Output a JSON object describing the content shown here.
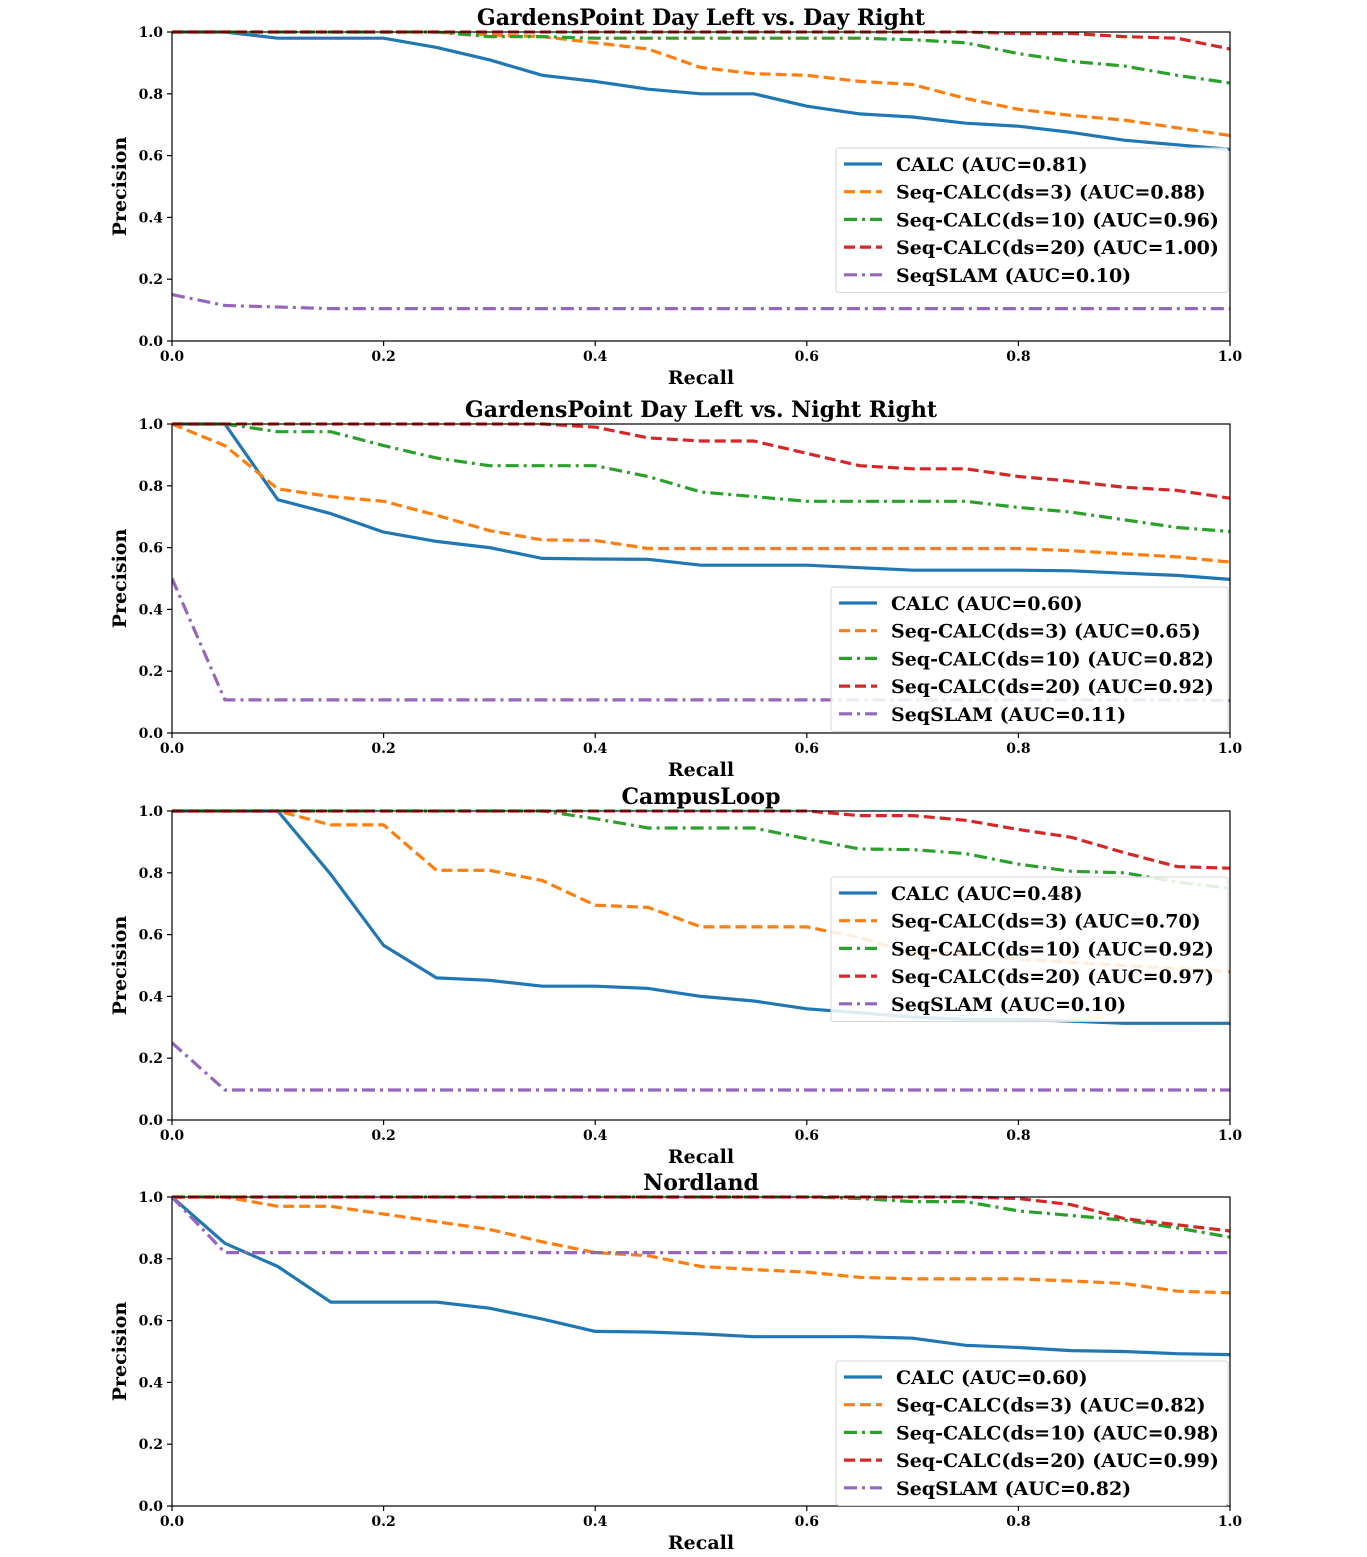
{
  "chart_data": [
    {
      "type": "line",
      "title": "GardensPoint Day Left vs. Day Right",
      "xlabel": "Recall",
      "ylabel": "Precision",
      "xlim": [
        0,
        1
      ],
      "ylim": [
        0,
        1
      ],
      "xticks": [
        "0.0",
        "0.2",
        "0.4",
        "0.6",
        "0.8",
        "1.0"
      ],
      "yticks": [
        "0.0",
        "0.2",
        "0.4",
        "0.6",
        "0.8",
        "1.0"
      ],
      "legend_position": "center-right",
      "x": [
        0.0,
        0.05,
        0.1,
        0.15,
        0.2,
        0.25,
        0.3,
        0.35,
        0.4,
        0.45,
        0.5,
        0.55,
        0.6,
        0.65,
        0.7,
        0.75,
        0.8,
        0.85,
        0.9,
        0.95,
        1.0
      ],
      "series": [
        {
          "name": "CALC (AUC=0.81)",
          "color": "#1f77b4",
          "style": "solid",
          "values": [
            1.0,
            1.0,
            0.98,
            0.98,
            0.98,
            0.95,
            0.91,
            0.86,
            0.84,
            0.815,
            0.8,
            0.8,
            0.76,
            0.735,
            0.725,
            0.705,
            0.695,
            0.675,
            0.65,
            0.635,
            0.62
          ]
        },
        {
          "name": "Seq-CALC(ds=3) (AUC=0.88)",
          "color": "#ff7f0e",
          "style": "dashed",
          "values": [
            1.0,
            1.0,
            1.0,
            1.0,
            1.0,
            1.0,
            0.99,
            0.985,
            0.965,
            0.945,
            0.885,
            0.865,
            0.86,
            0.84,
            0.83,
            0.785,
            0.75,
            0.73,
            0.715,
            0.69,
            0.665
          ]
        },
        {
          "name": "Seq-CALC(ds=10) (AUC=0.96)",
          "color": "#2ca02c",
          "style": "dashdot",
          "values": [
            1.0,
            1.0,
            1.0,
            1.0,
            1.0,
            1.0,
            0.985,
            0.985,
            0.98,
            0.98,
            0.98,
            0.98,
            0.98,
            0.98,
            0.975,
            0.965,
            0.93,
            0.905,
            0.89,
            0.86,
            0.835
          ]
        },
        {
          "name": "Seq-CALC(ds=20) (AUC=1.00)",
          "color": "#d62728",
          "style": "dashed",
          "values": [
            1.0,
            1.0,
            1.0,
            1.0,
            1.0,
            1.0,
            1.0,
            1.0,
            1.0,
            1.0,
            1.0,
            1.0,
            1.0,
            1.0,
            1.0,
            1.0,
            0.995,
            0.995,
            0.985,
            0.98,
            0.945
          ]
        },
        {
          "name": "SeqSLAM (AUC=0.10)",
          "color": "#9467bd",
          "style": "dashdot",
          "values": [
            0.15,
            0.115,
            0.11,
            0.105,
            0.105,
            0.105,
            0.105,
            0.105,
            0.105,
            0.105,
            0.105,
            0.105,
            0.105,
            0.105,
            0.105,
            0.105,
            0.105,
            0.105,
            0.105,
            0.105,
            0.105
          ]
        }
      ]
    },
    {
      "type": "line",
      "title": "GardensPoint Day Left vs. Night Right",
      "xlabel": "Recall",
      "ylabel": "Precision",
      "xlim": [
        0,
        1
      ],
      "ylim": [
        0,
        1
      ],
      "xticks": [
        "0.0",
        "0.2",
        "0.4",
        "0.6",
        "0.8",
        "1.0"
      ],
      "yticks": [
        "0.0",
        "0.2",
        "0.4",
        "0.6",
        "0.8",
        "1.0"
      ],
      "legend_position": "lower-right",
      "x": [
        0.0,
        0.05,
        0.1,
        0.15,
        0.2,
        0.25,
        0.3,
        0.35,
        0.4,
        0.45,
        0.5,
        0.55,
        0.6,
        0.65,
        0.7,
        0.75,
        0.8,
        0.85,
        0.9,
        0.95,
        1.0
      ],
      "series": [
        {
          "name": "CALC (AUC=0.60)",
          "color": "#1f77b4",
          "style": "solid",
          "values": [
            1.0,
            1.0,
            0.755,
            0.71,
            0.65,
            0.62,
            0.6,
            0.565,
            0.563,
            0.562,
            0.543,
            0.543,
            0.543,
            0.535,
            0.527,
            0.527,
            0.527,
            0.525,
            0.517,
            0.51,
            0.497
          ]
        },
        {
          "name": "Seq-CALC(ds=3) (AUC=0.65)",
          "color": "#ff7f0e",
          "style": "dashed",
          "values": [
            1.0,
            0.93,
            0.79,
            0.765,
            0.75,
            0.705,
            0.655,
            0.625,
            0.623,
            0.597,
            0.597,
            0.597,
            0.597,
            0.597,
            0.597,
            0.597,
            0.597,
            0.59,
            0.58,
            0.57,
            0.553
          ]
        },
        {
          "name": "Seq-CALC(ds=10) (AUC=0.82)",
          "color": "#2ca02c",
          "style": "dashdot",
          "values": [
            1.0,
            1.0,
            0.975,
            0.975,
            0.93,
            0.89,
            0.865,
            0.865,
            0.865,
            0.83,
            0.78,
            0.765,
            0.75,
            0.75,
            0.75,
            0.75,
            0.73,
            0.715,
            0.69,
            0.665,
            0.652
          ]
        },
        {
          "name": "Seq-CALC(ds=20) (AUC=0.92)",
          "color": "#d62728",
          "style": "dashed",
          "values": [
            1.0,
            1.0,
            1.0,
            1.0,
            1.0,
            1.0,
            1.0,
            1.0,
            0.99,
            0.955,
            0.945,
            0.945,
            0.905,
            0.865,
            0.855,
            0.855,
            0.83,
            0.815,
            0.795,
            0.785,
            0.76
          ]
        },
        {
          "name": "SeqSLAM (AUC=0.11)",
          "color": "#9467bd",
          "style": "dashdot",
          "values": [
            0.5,
            0.107,
            0.107,
            0.107,
            0.107,
            0.107,
            0.107,
            0.107,
            0.107,
            0.107,
            0.107,
            0.107,
            0.107,
            0.107,
            0.107,
            0.107,
            0.107,
            0.107,
            0.107,
            0.107,
            0.105
          ]
        }
      ]
    },
    {
      "type": "line",
      "title": "CampusLoop",
      "xlabel": "Recall",
      "ylabel": "Precision",
      "xlim": [
        0,
        1
      ],
      "ylim": [
        0,
        1
      ],
      "xticks": [
        "0.0",
        "0.2",
        "0.4",
        "0.6",
        "0.8",
        "1.0"
      ],
      "yticks": [
        "0.0",
        "0.2",
        "0.4",
        "0.6",
        "0.8",
        "1.0"
      ],
      "legend_position": "center-right",
      "x": [
        0.0,
        0.05,
        0.1,
        0.15,
        0.2,
        0.25,
        0.3,
        0.35,
        0.4,
        0.45,
        0.5,
        0.55,
        0.6,
        0.65,
        0.7,
        0.75,
        0.8,
        0.85,
        0.9,
        0.95,
        1.0
      ],
      "series": [
        {
          "name": "CALC (AUC=0.48)",
          "color": "#1f77b4",
          "style": "solid",
          "values": [
            1.0,
            1.0,
            1.0,
            0.795,
            0.565,
            0.46,
            0.452,
            0.433,
            0.433,
            0.426,
            0.4,
            0.385,
            0.36,
            0.347,
            0.333,
            0.326,
            0.326,
            0.32,
            0.313,
            0.313,
            0.313
          ]
        },
        {
          "name": "Seq-CALC(ds=3) (AUC=0.70)",
          "color": "#ff7f0e",
          "style": "dashed",
          "values": [
            1.0,
            1.0,
            1.0,
            0.955,
            0.955,
            0.808,
            0.808,
            0.775,
            0.695,
            0.688,
            0.625,
            0.625,
            0.625,
            0.59,
            0.54,
            0.54,
            0.52,
            0.51,
            0.5,
            0.49,
            0.48
          ]
        },
        {
          "name": "Seq-CALC(ds=10) (AUC=0.92)",
          "color": "#2ca02c",
          "style": "dashdot",
          "values": [
            1.0,
            1.0,
            1.0,
            1.0,
            1.0,
            1.0,
            1.0,
            1.0,
            0.975,
            0.945,
            0.945,
            0.945,
            0.91,
            0.877,
            0.875,
            0.862,
            0.828,
            0.805,
            0.8,
            0.77,
            0.75
          ]
        },
        {
          "name": "Seq-CALC(ds=20) (AUC=0.97)",
          "color": "#d62728",
          "style": "dashed",
          "values": [
            1.0,
            1.0,
            1.0,
            1.0,
            1.0,
            1.0,
            1.0,
            1.0,
            1.0,
            1.0,
            1.0,
            1.0,
            1.0,
            0.985,
            0.985,
            0.97,
            0.94,
            0.915,
            0.865,
            0.82,
            0.815
          ]
        },
        {
          "name": "SeqSLAM (AUC=0.10)",
          "color": "#9467bd",
          "style": "dashdot",
          "values": [
            0.25,
            0.097,
            0.097,
            0.097,
            0.097,
            0.097,
            0.097,
            0.097,
            0.097,
            0.097,
            0.097,
            0.097,
            0.097,
            0.097,
            0.097,
            0.097,
            0.097,
            0.097,
            0.097,
            0.097,
            0.097
          ]
        }
      ]
    },
    {
      "type": "line",
      "title": "Nordland",
      "xlabel": "Recall",
      "ylabel": "Precision",
      "xlim": [
        0,
        1
      ],
      "ylim": [
        0,
        1
      ],
      "xticks": [
        "0.0",
        "0.2",
        "0.4",
        "0.6",
        "0.8",
        "1.0"
      ],
      "yticks": [
        "0.0",
        "0.2",
        "0.4",
        "0.6",
        "0.8",
        "1.0"
      ],
      "legend_position": "lower-right",
      "x": [
        0.0,
        0.05,
        0.1,
        0.15,
        0.2,
        0.25,
        0.3,
        0.35,
        0.4,
        0.45,
        0.5,
        0.55,
        0.6,
        0.65,
        0.7,
        0.75,
        0.8,
        0.85,
        0.9,
        0.95,
        1.0
      ],
      "series": [
        {
          "name": "CALC (AUC=0.60)",
          "color": "#1f77b4",
          "style": "solid",
          "values": [
            1.0,
            0.85,
            0.775,
            0.66,
            0.66,
            0.66,
            0.64,
            0.605,
            0.565,
            0.563,
            0.557,
            0.548,
            0.548,
            0.548,
            0.543,
            0.52,
            0.513,
            0.503,
            0.5,
            0.493,
            0.49
          ]
        },
        {
          "name": "Seq-CALC(ds=3) (AUC=0.82)",
          "color": "#ff7f0e",
          "style": "dashed",
          "values": [
            1.0,
            1.0,
            0.97,
            0.97,
            0.945,
            0.92,
            0.895,
            0.855,
            0.82,
            0.81,
            0.775,
            0.765,
            0.757,
            0.74,
            0.735,
            0.735,
            0.735,
            0.728,
            0.72,
            0.695,
            0.69
          ]
        },
        {
          "name": "Seq-CALC(ds=10) (AUC=0.98)",
          "color": "#2ca02c",
          "style": "dashdot",
          "values": [
            1.0,
            1.0,
            1.0,
            1.0,
            1.0,
            1.0,
            1.0,
            1.0,
            1.0,
            1.0,
            1.0,
            1.0,
            1.0,
            0.995,
            0.985,
            0.985,
            0.955,
            0.94,
            0.925,
            0.9,
            0.87
          ]
        },
        {
          "name": "Seq-CALC(ds=20) (AUC=0.99)",
          "color": "#d62728",
          "style": "dashed",
          "values": [
            1.0,
            1.0,
            1.0,
            1.0,
            1.0,
            1.0,
            1.0,
            1.0,
            1.0,
            1.0,
            1.0,
            1.0,
            1.0,
            1.0,
            1.0,
            1.0,
            0.995,
            0.975,
            0.93,
            0.91,
            0.89
          ]
        },
        {
          "name": "SeqSLAM (AUC=0.82)",
          "color": "#9467bd",
          "style": "dashdot",
          "values": [
            1.0,
            0.82,
            0.82,
            0.82,
            0.82,
            0.82,
            0.82,
            0.82,
            0.82,
            0.82,
            0.82,
            0.82,
            0.82,
            0.82,
            0.82,
            0.82,
            0.82,
            0.82,
            0.82,
            0.82,
            0.82
          ]
        }
      ]
    }
  ]
}
